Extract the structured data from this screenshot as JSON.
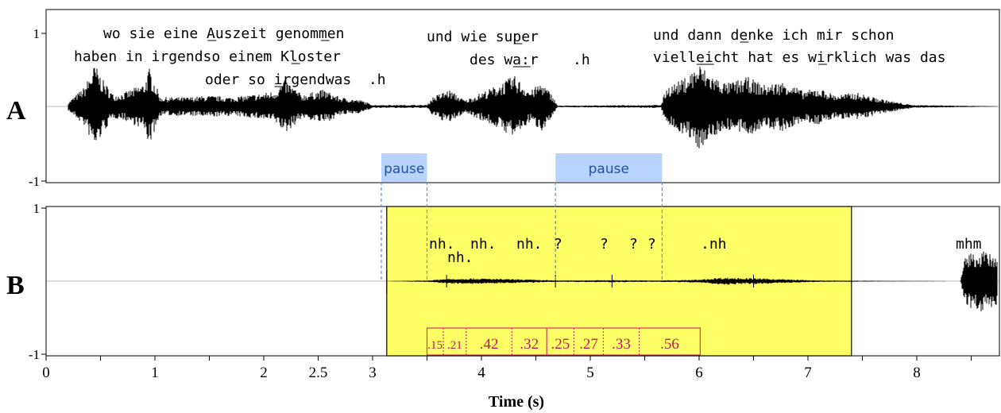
{
  "chart_data": {
    "type": "waveform",
    "xlabel": "Time (s)",
    "xlim": [
      0,
      8.87
    ],
    "x_ticks": [
      "0",
      "1",
      "2",
      "2.5",
      "3",
      "4",
      "5",
      "6",
      "7",
      "8"
    ],
    "x_tick_values": [
      0,
      1,
      2,
      2.5,
      3,
      4,
      5,
      6,
      7,
      8
    ],
    "panels": [
      {
        "id": "A",
        "label": "A",
        "y_ticks": [
          "1",
          "-1"
        ],
        "transcript": [
          {
            "text": "wo sie eine Auszeit genommen",
            "underline": [
              {
                "pos": 12,
                "len": 1
              },
              {
                "pos": 25,
                "len": 1
              }
            ]
          },
          {
            "text": "haben in irgendso einem Kloster",
            "underline": [
              {
                "pos": 25,
                "len": 1
              }
            ]
          },
          {
            "text": "oder so irgendwas  .h",
            "underline": [
              {
                "pos": 8,
                "len": 1
              }
            ]
          },
          {
            "text": "und wie super",
            "underline": [
              {
                "pos": 10,
                "len": 1
              }
            ]
          },
          {
            "text": "des wa:r    .h",
            "underline": [
              {
                "pos": 5,
                "len": 2
              }
            ]
          },
          {
            "text": "und dann denke ich mir schon",
            "underline": [
              {
                "pos": 10,
                "len": 1
              }
            ]
          },
          {
            "text": "vielleicht hat es wirklich was das",
            "underline": [
              {
                "pos": 5,
                "len": 2
              },
              {
                "pos": 19,
                "len": 1
              }
            ]
          }
        ],
        "pauses": [
          {
            "label": "pause",
            "start": 3.08,
            "end": 3.5
          },
          {
            "label": "pause",
            "start": 4.68,
            "end": 5.66
          }
        ]
      },
      {
        "id": "B",
        "label": "B",
        "y_ticks": [
          "1",
          "-1"
        ],
        "highlight_region": {
          "start": 3.13,
          "end": 7.4,
          "color": "#ffff66"
        },
        "tokens": [
          "nh.",
          "nh.",
          "nh.",
          "nh.",
          "?",
          "?",
          "?",
          "?",
          ".nh",
          "mhm"
        ],
        "intervals": {
          "labels": [
            ".15",
            ".21",
            ".42",
            ".32",
            ".25",
            ".27",
            ".33",
            ".56"
          ],
          "values": [
            0.15,
            0.21,
            0.42,
            0.32,
            0.25,
            0.27,
            0.33,
            0.56
          ],
          "start": 3.5
        }
      }
    ],
    "colors": {
      "waveform": "#000000",
      "pause_fill": "#b9d3ff",
      "pause_text": "#1f4fa8",
      "pause_line": "#5b8fe0",
      "highlight": "#ffff66",
      "interval_border": "#d6336c",
      "interval_text": "#c2185b"
    }
  }
}
